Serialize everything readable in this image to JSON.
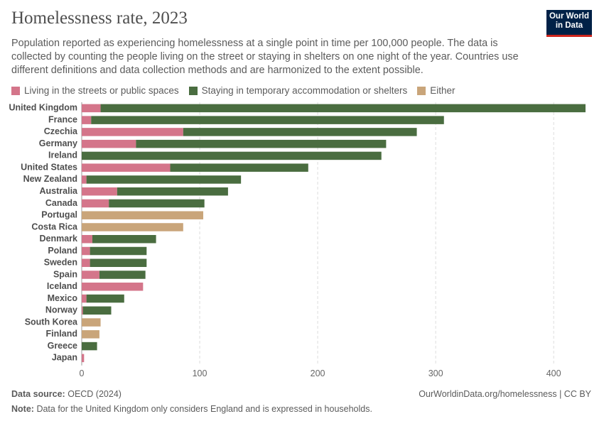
{
  "chart_data": {
    "type": "bar",
    "orientation": "horizontal",
    "stacked": true,
    "title": "Homelessness rate, 2023",
    "subtitle": "Population reported as experiencing homelessness at a single point in time per 100,000 people. The data is collected by counting the people living on the street or staying in shelters on one night of the year. Countries use different definitions and data collection methods and are harmonized to the extent possible.",
    "logo": [
      "Our World",
      "in Data"
    ],
    "categories": [
      "United Kingdom",
      "France",
      "Czechia",
      "Germany",
      "Ireland",
      "United States",
      "New Zealand",
      "Australia",
      "Canada",
      "Portugal",
      "Costa Rica",
      "Denmark",
      "Poland",
      "Sweden",
      "Spain",
      "Iceland",
      "Mexico",
      "Norway",
      "South Korea",
      "Finland",
      "Greece",
      "Japan"
    ],
    "series": [
      {
        "name": "Living in the streets or public spaces",
        "color": "#d4758a",
        "values": [
          16,
          8,
          86,
          46,
          null,
          75,
          4,
          30,
          23,
          null,
          null,
          9,
          7,
          7,
          15,
          52,
          4,
          1,
          null,
          null,
          null,
          2
        ]
      },
      {
        "name": "Staying in temporary accommodation or shelters",
        "color": "#4a6d40",
        "values": [
          411,
          299,
          198,
          212,
          254,
          117,
          131,
          94,
          81,
          null,
          null,
          54,
          48,
          48,
          39,
          null,
          32,
          24,
          null,
          null,
          13,
          null
        ]
      },
      {
        "name": "Either",
        "color": "#c9a57a",
        "values": [
          null,
          null,
          null,
          null,
          null,
          null,
          null,
          null,
          null,
          103,
          86,
          null,
          null,
          null,
          null,
          null,
          null,
          null,
          16,
          15,
          null,
          null
        ]
      }
    ],
    "xlim": [
      0,
      427
    ],
    "xticks": [
      0,
      100,
      200,
      300,
      400
    ],
    "grid": true,
    "source_label": "Data source:",
    "source": "OECD (2024)",
    "url": "OurWorldinData.org/homelessness | CC BY",
    "note_label": "Note:",
    "note": "Data for the United Kingdom only considers England and is expressed in households."
  }
}
